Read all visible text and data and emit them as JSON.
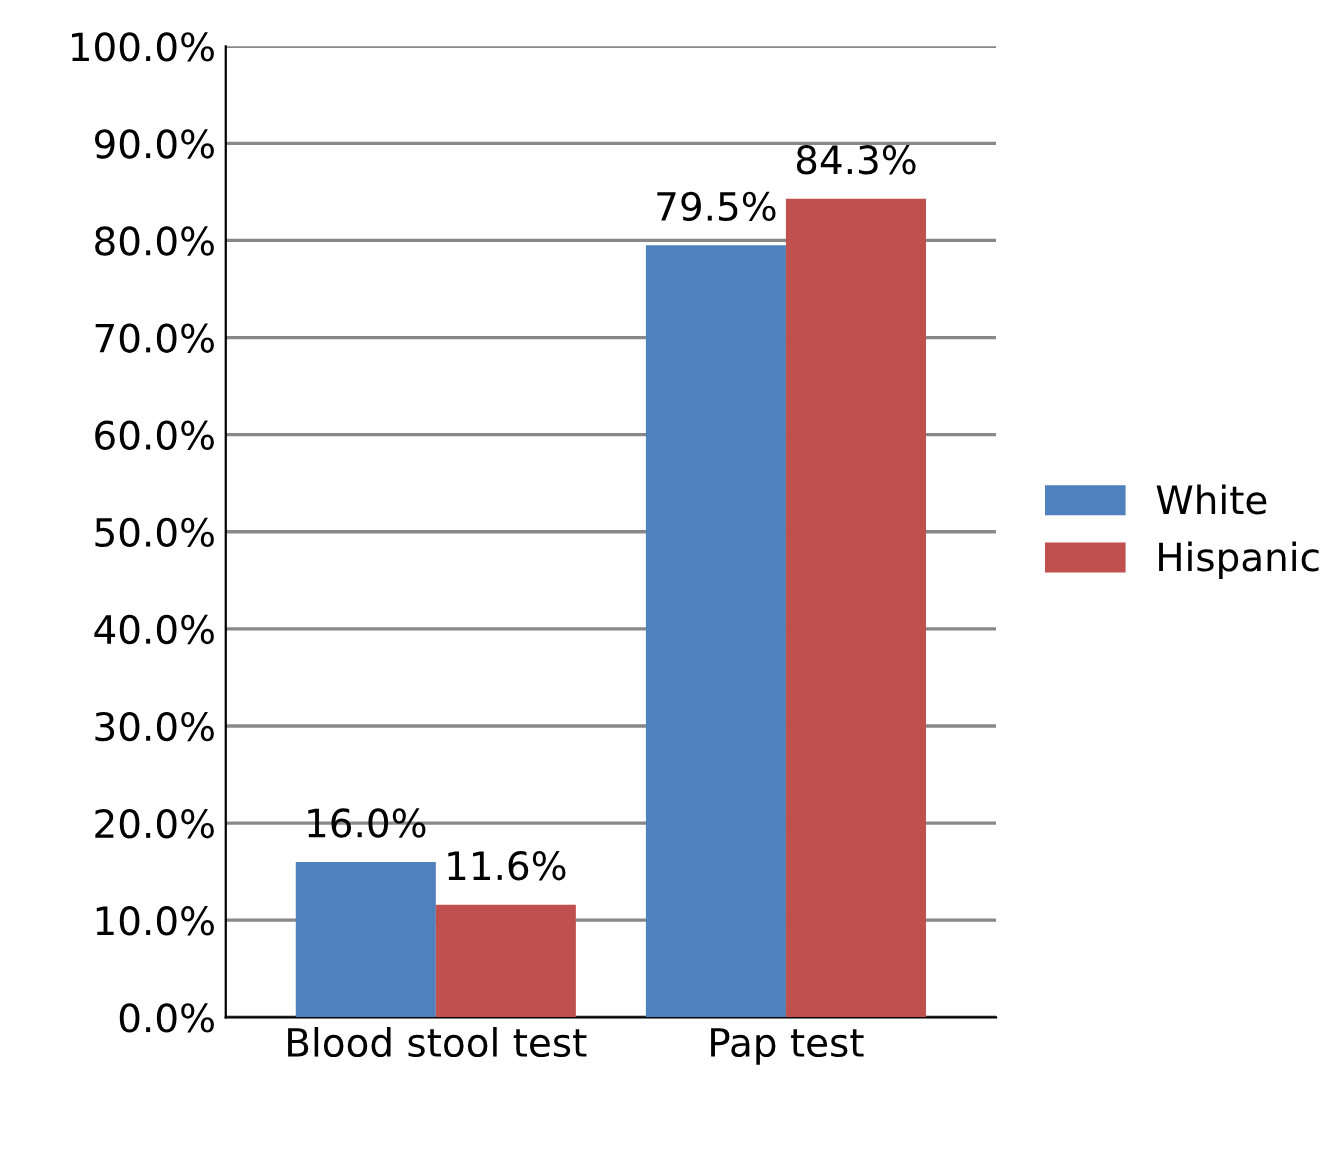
{
  "chart_data": {
    "type": "bar",
    "categories": [
      "Blood stool test",
      "Pap test"
    ],
    "series": [
      {
        "name": "White",
        "color": "#4f81bd",
        "values": [
          16.0,
          79.5
        ],
        "value_labels": [
          "16.0%",
          "79.5%"
        ]
      },
      {
        "name": "Hispanic",
        "color": "#c0504d",
        "values": [
          11.6,
          84.3
        ],
        "value_labels": [
          "11.6%",
          "84.3%"
        ]
      }
    ],
    "ylim": [
      0,
      100
    ],
    "yticks": [
      {
        "value": 0,
        "label": "0.0%"
      },
      {
        "value": 10,
        "label": "10.0%"
      },
      {
        "value": 20,
        "label": "20.0%"
      },
      {
        "value": 30,
        "label": "30.0%"
      },
      {
        "value": 40,
        "label": "40.0%"
      },
      {
        "value": 50,
        "label": "50.0%"
      },
      {
        "value": 60,
        "label": "60.0%"
      },
      {
        "value": 70,
        "label": "70.0%"
      },
      {
        "value": 80,
        "label": "80.0%"
      },
      {
        "value": 90,
        "label": "90.0%"
      },
      {
        "value": 100,
        "label": "100.0%"
      }
    ],
    "grid": "y",
    "legend": "right"
  }
}
